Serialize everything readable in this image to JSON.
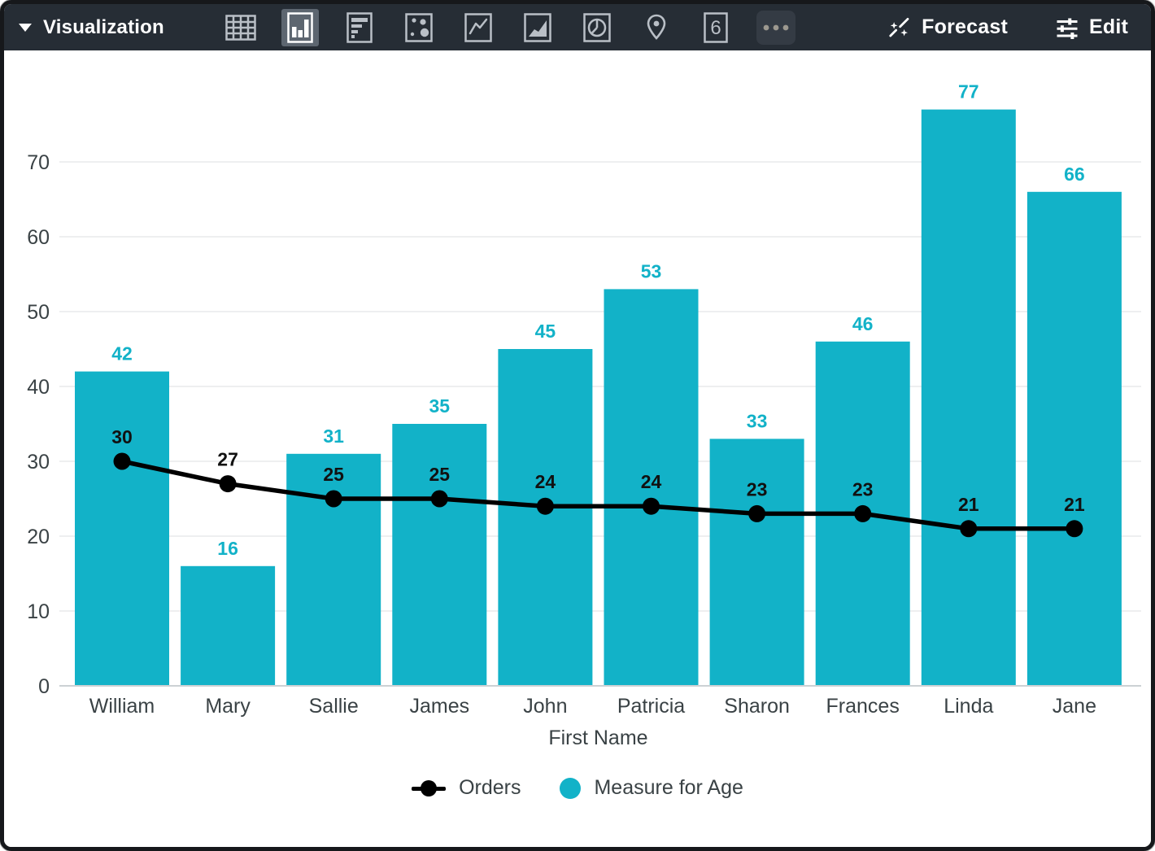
{
  "toolbar": {
    "title": "Visualization",
    "chart_types": [
      {
        "name": "table",
        "selected": false
      },
      {
        "name": "column",
        "selected": true
      },
      {
        "name": "bar",
        "selected": false
      },
      {
        "name": "scatter",
        "selected": false
      },
      {
        "name": "line",
        "selected": false
      },
      {
        "name": "area",
        "selected": false
      },
      {
        "name": "pie",
        "selected": false
      },
      {
        "name": "map",
        "selected": false
      },
      {
        "name": "single-value",
        "selected": false
      },
      {
        "name": "more",
        "selected": false
      }
    ],
    "single_value_icon_text": "6",
    "forecast_label": "Forecast",
    "edit_label": "Edit"
  },
  "chart_data": {
    "type": "combo",
    "categories": [
      "William",
      "Mary",
      "Sallie",
      "James",
      "John",
      "Patricia",
      "Sharon",
      "Frances",
      "Linda",
      "Jane"
    ],
    "series": [
      {
        "name": "Orders",
        "type": "line",
        "color": "#000000",
        "values": [
          30,
          27,
          25,
          25,
          24,
          24,
          23,
          23,
          21,
          21
        ]
      },
      {
        "name": "Measure for Age",
        "type": "bar",
        "color": "#12b2c8",
        "values": [
          42,
          16,
          31,
          35,
          45,
          53,
          33,
          46,
          77,
          66
        ]
      }
    ],
    "xlabel": "First Name",
    "ylabel": "",
    "ylim": [
      0,
      80
    ],
    "yticks": [
      0,
      10,
      20,
      30,
      40,
      50,
      60,
      70
    ],
    "grid": true,
    "legend_position": "bottom",
    "data_labels": true
  },
  "colors": {
    "accent_teal": "#12b2c8",
    "toolbar_bg": "#262d35",
    "selected_tile_bg": "#5d6670",
    "icon_gray": "#b9bfc6",
    "tick_text": "#3a4245",
    "gridline": "#e8eaeb",
    "axis_line": "#ccd1d4",
    "point_label": "#111111"
  }
}
